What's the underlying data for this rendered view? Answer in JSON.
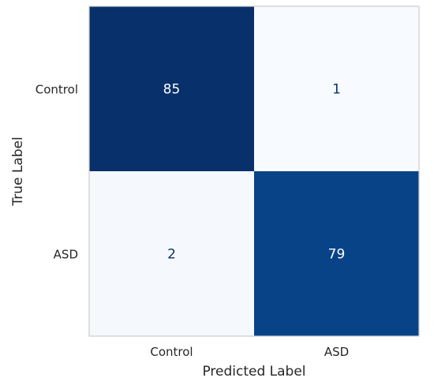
{
  "chart_data": {
    "type": "heatmap",
    "title": "",
    "xlabel": "Predicted Label",
    "ylabel": "True Label",
    "x_categories": [
      "Control",
      "ASD"
    ],
    "y_categories": [
      "Control",
      "ASD"
    ],
    "values": [
      [
        85,
        1
      ],
      [
        2,
        79
      ]
    ],
    "colormap": "Blues",
    "grid": false,
    "colors": {
      "low": "#f7fbff",
      "high": "#08306b",
      "text_on_dark": "#ffffff",
      "text_on_light": "#08306b",
      "frame": "#cccccc",
      "ink": "#262626"
    }
  }
}
